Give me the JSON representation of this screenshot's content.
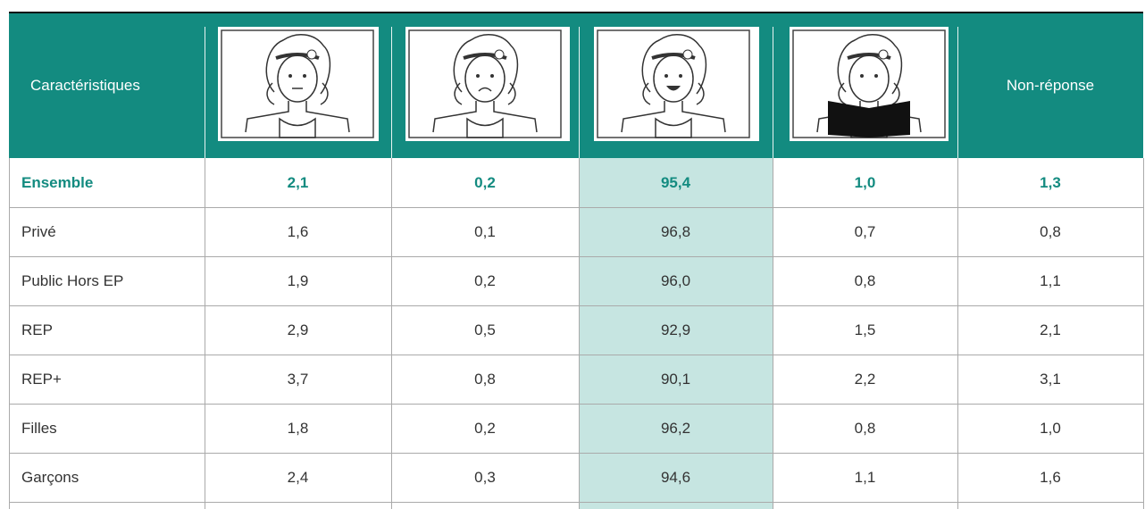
{
  "table": {
    "header": {
      "first": "Caractéristiques",
      "last": "Non-réponse"
    },
    "rows": [
      [
        "Ensemble",
        "2,1",
        "0,2",
        "95,4",
        "1,0",
        "1,3"
      ],
      [
        "Privé",
        "1,6",
        "0,1",
        "96,8",
        "0,7",
        "0,8"
      ],
      [
        "Public Hors EP",
        "1,9",
        "0,2",
        "96,0",
        "0,8",
        "1,1"
      ],
      [
        "REP",
        "2,9",
        "0,5",
        "92,9",
        "1,5",
        "2,1"
      ],
      [
        "REP+",
        "3,7",
        "0,8",
        "90,1",
        "2,2",
        "3,1"
      ],
      [
        "Filles",
        "1,8",
        "0,2",
        "96,2",
        "0,8",
        "1,0"
      ],
      [
        "Garçons",
        "2,4",
        "0,3",
        "94,6",
        "1,1",
        "1,6"
      ]
    ]
  }
}
